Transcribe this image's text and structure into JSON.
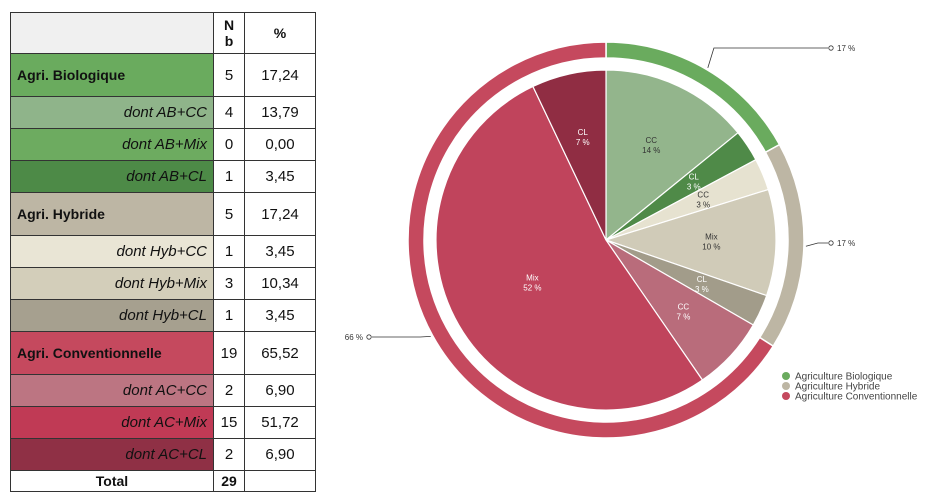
{
  "table": {
    "header": {
      "label": "",
      "nb": "N\nb",
      "pct": "%"
    },
    "rows": [
      {
        "kind": "group",
        "label": "Agri. Biologique",
        "nb": "5",
        "pct": "17,24",
        "color": "#6aab5e"
      },
      {
        "kind": "sub",
        "label": "dont AB+CC",
        "nb": "4",
        "pct": "13,79",
        "color": "#8fb48a"
      },
      {
        "kind": "sub",
        "label": "dont AB+Mix",
        "nb": "0",
        "pct": "0,00",
        "color": "#6dab60"
      },
      {
        "kind": "sub",
        "label": "dont AB+CL",
        "nb": "1",
        "pct": "3,45",
        "color": "#4d8a47"
      },
      {
        "kind": "group",
        "label": "Agri. Hybride",
        "nb": "5",
        "pct": "17,24",
        "color": "#bdb6a4"
      },
      {
        "kind": "sub",
        "label": "dont Hyb+CC",
        "nb": "1",
        "pct": "3,45",
        "color": "#e9e5d5"
      },
      {
        "kind": "sub",
        "label": "dont Hyb+Mix",
        "nb": "3",
        "pct": "10,34",
        "color": "#d3ceba"
      },
      {
        "kind": "sub",
        "label": "dont Hyb+CL",
        "nb": "1",
        "pct": "3,45",
        "color": "#a6a08f"
      },
      {
        "kind": "group",
        "label": "Agri. Conventionnelle",
        "nb": "19",
        "pct": "65,52",
        "color": "#c5495e"
      },
      {
        "kind": "sub",
        "label": "dont AC+CC",
        "nb": "2",
        "pct": "6,90",
        "color": "#bc7582"
      },
      {
        "kind": "sub",
        "label": "dont AC+Mix",
        "nb": "15",
        "pct": "51,72",
        "color": "#c03a55"
      },
      {
        "kind": "sub",
        "label": "dont AC+CL",
        "nb": "2",
        "pct": "6,90",
        "color": "#8f3045"
      }
    ],
    "total": {
      "label": "Total",
      "nb": "29",
      "pct": ""
    }
  },
  "chart_data": {
    "type": "pie",
    "inner": [
      {
        "label": "CC",
        "pct_label": "14 %",
        "value": 14,
        "color": "#93b58c"
      },
      {
        "label": "CL",
        "pct_label": "3 %",
        "value": 3,
        "color": "#4f8a48"
      },
      {
        "label": "CC",
        "pct_label": "3 %",
        "value": 3,
        "color": "#e6e2d0"
      },
      {
        "label": "Mix",
        "pct_label": "10 %",
        "value": 10,
        "color": "#d0cbb8"
      },
      {
        "label": "CL",
        "pct_label": "3 %",
        "value": 3,
        "color": "#a29c8a"
      },
      {
        "label": "CC",
        "pct_label": "7 %",
        "value": 7,
        "color": "#b96c7b"
      },
      {
        "label": "Mix",
        "pct_label": "52 %",
        "value": 52,
        "color": "#c0445c"
      },
      {
        "label": "CL",
        "pct_label": "7 %",
        "value": 7,
        "color": "#902d43"
      }
    ],
    "outer": [
      {
        "label": "17 %",
        "value": 17,
        "color": "#6aab5e",
        "side": "right"
      },
      {
        "label": "17 %",
        "value": 17,
        "color": "#bdb6a4",
        "side": "right"
      },
      {
        "label": "66 %",
        "value": 66,
        "color": "#c5495e",
        "side": "left"
      }
    ],
    "legend": [
      {
        "label": "Agriculture Biologique",
        "color": "#6aab5e"
      },
      {
        "label": "Agriculture Hybride",
        "color": "#bdb6a4"
      },
      {
        "label": "Agriculture Conventionnelle",
        "color": "#c5495e"
      }
    ],
    "legend_position": "bottom-right"
  }
}
